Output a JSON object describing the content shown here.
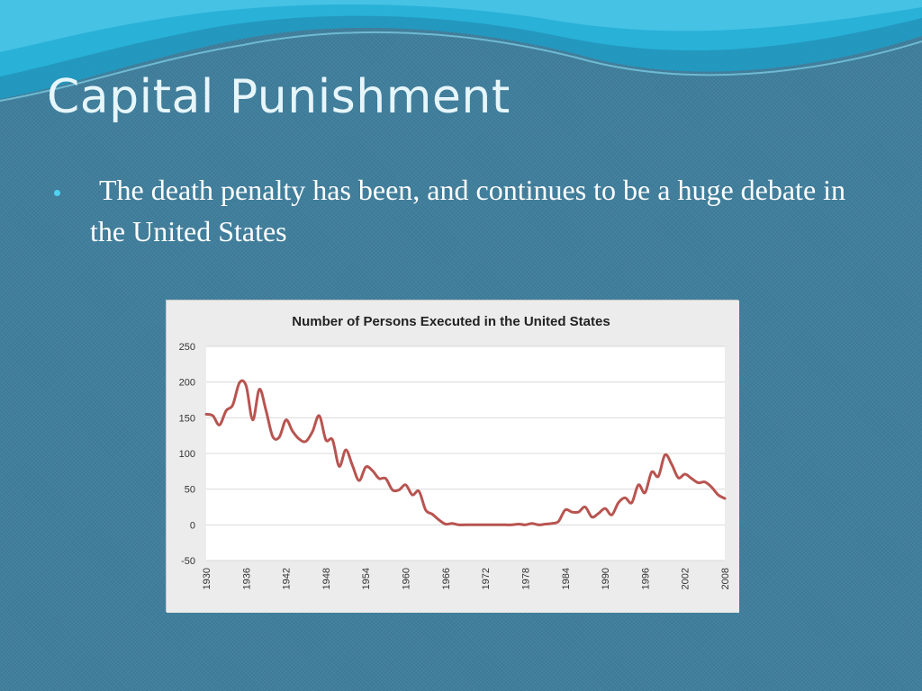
{
  "slide": {
    "title": "Capital Punishment",
    "bullets": [
      {
        "text": "The death penalty has been, and continues to be a huge debate in the United States"
      }
    ]
  },
  "colors": {
    "background": "#3f7e9c",
    "title": "#e6f6fb",
    "bullet_dot": "#4fd3f2",
    "line": "#b85450",
    "plot_bg": "#ffffff",
    "chart_panel": "#ececec"
  },
  "chart_data": {
    "type": "line",
    "title": "Number of Persons Executed in the United States",
    "xlabel": "",
    "ylabel": "",
    "xlim": [
      1930,
      2008
    ],
    "ylim": [
      -50,
      250
    ],
    "y_ticks": [
      250,
      200,
      150,
      100,
      50,
      0,
      -50
    ],
    "x_ticks": [
      1930,
      1936,
      1942,
      1948,
      1954,
      1960,
      1966,
      1972,
      1978,
      1984,
      1990,
      1996,
      2002,
      2008
    ],
    "grid": true,
    "legend": "none",
    "x": [
      1930,
      1931,
      1932,
      1933,
      1934,
      1935,
      1936,
      1937,
      1938,
      1939,
      1940,
      1941,
      1942,
      1943,
      1944,
      1945,
      1946,
      1947,
      1948,
      1949,
      1950,
      1951,
      1952,
      1953,
      1954,
      1955,
      1956,
      1957,
      1958,
      1959,
      1960,
      1961,
      1962,
      1963,
      1964,
      1965,
      1966,
      1967,
      1968,
      1969,
      1970,
      1971,
      1972,
      1973,
      1974,
      1975,
      1976,
      1977,
      1978,
      1979,
      1980,
      1981,
      1982,
      1983,
      1984,
      1985,
      1986,
      1987,
      1988,
      1989,
      1990,
      1991,
      1992,
      1993,
      1994,
      1995,
      1996,
      1997,
      1998,
      1999,
      2000,
      2001,
      2002,
      2003,
      2004,
      2005,
      2006,
      2007,
      2008
    ],
    "series": [
      {
        "values": [
          155,
          153,
          140,
          160,
          168,
          199,
          195,
          147,
          190,
          160,
          124,
          123,
          147,
          131,
          120,
          117,
          131,
          153,
          119,
          119,
          82,
          105,
          83,
          62,
          81,
          76,
          65,
          65,
          49,
          49,
          56,
          42,
          47,
          21,
          15,
          7,
          1,
          2,
          0,
          0,
          0,
          0,
          0,
          0,
          0,
          0,
          0,
          1,
          0,
          2,
          0,
          1,
          2,
          5,
          21,
          18,
          18,
          25,
          11,
          16,
          23,
          14,
          31,
          38,
          31,
          56,
          45,
          74,
          68,
          98,
          85,
          66,
          71,
          65,
          59,
          60,
          53,
          42,
          37
        ]
      }
    ]
  }
}
